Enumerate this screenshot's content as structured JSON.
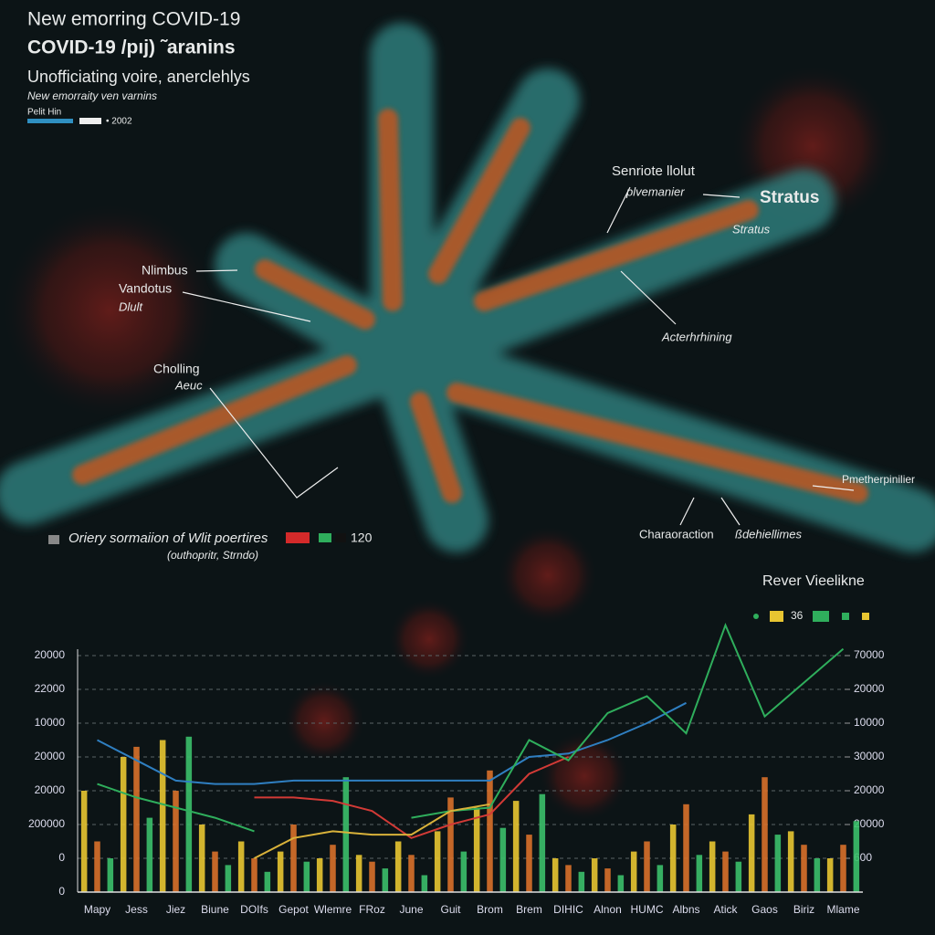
{
  "header": {
    "title": "New emorring COVID-19",
    "title2": "COVID-19  /pıj) ˜aranins",
    "subtitle": "Unofficiating voire, anerclehlys",
    "note": "New emorraity ven varnins",
    "legend_head": "Pelit Hin",
    "legend_item": "• 2002"
  },
  "annotations": {
    "a1": "Senriote llolut",
    "a2": "plvemanier",
    "a3": "Stratus",
    "a4": "Stratus",
    "a5": "Nlimbus",
    "a6": "Vandotus",
    "a7": "Dlult",
    "a8": "Acterhrhining",
    "a9": "Cholling",
    "a10": "Aeuc",
    "a11": "Pmetherpinilier",
    "a12": "Charaoraction",
    "a13": "ßdehiellimes"
  },
  "mid_legend": {
    "text": "Oriery sormaiion of Wlit poertires",
    "value": "120",
    "sub": "(outhopritr, Strndo)"
  },
  "chart_data": {
    "type": "bar",
    "legend_title": "Rever Vieelikne",
    "legend_value": "36",
    "categories": [
      "Mapy",
      "Jess",
      "Jiez",
      "Biune",
      "DOIfs",
      "Gepot",
      "Wlemre",
      "FRoz",
      "June",
      "Guit",
      "Brom",
      "Brem",
      "DIHIC",
      "Alnon",
      "HUMC",
      "Albns",
      "Atick",
      "Gaos",
      "Biriz",
      "Mlame"
    ],
    "series": [
      {
        "color": "#e8c531",
        "values": [
          3.0,
          4.0,
          4.5,
          2.0,
          1.5,
          1.2,
          1.0,
          1.1,
          1.5,
          1.8,
          2.5,
          2.7,
          1.0,
          1.0,
          1.2,
          2.0,
          1.5,
          2.3,
          1.8,
          1.0
        ]
      },
      {
        "color": "#d8702a",
        "values": [
          1.5,
          4.3,
          3.0,
          1.2,
          1.0,
          2.0,
          1.4,
          0.9,
          1.1,
          2.8,
          3.6,
          1.7,
          0.8,
          0.7,
          1.5,
          2.6,
          1.2,
          3.4,
          1.4,
          1.4
        ]
      },
      {
        "color": "#3bbf6a",
        "values": [
          1.0,
          2.2,
          4.6,
          0.8,
          0.6,
          0.9,
          3.4,
          0.7,
          0.5,
          1.2,
          1.9,
          2.9,
          0.6,
          0.5,
          0.8,
          1.1,
          0.9,
          1.7,
          1.0,
          2.1
        ]
      }
    ],
    "lines": [
      {
        "color": "#2f7fc1",
        "values": [
          4.5,
          3.9,
          3.3,
          3.2,
          3.2,
          3.3,
          3.3,
          3.3,
          3.3,
          3.3,
          3.3,
          4.0,
          4.1,
          4.5,
          5.0,
          5.6,
          null,
          null,
          null,
          null
        ]
      },
      {
        "color": "#d23a36",
        "values": [
          null,
          null,
          null,
          null,
          2.8,
          2.8,
          2.7,
          2.4,
          1.6,
          2.0,
          2.3,
          3.5,
          4.0,
          null,
          null,
          null,
          null,
          null,
          null,
          null
        ]
      },
      {
        "color": "#2fae5c",
        "values": [
          3.2,
          2.8,
          2.5,
          2.2,
          1.8,
          null,
          null,
          null,
          2.2,
          2.4,
          2.5,
          4.5,
          3.9,
          5.3,
          5.8,
          4.7,
          7.9,
          5.2,
          6.2,
          7.2
        ]
      },
      {
        "color": "#d9b23a",
        "values": [
          null,
          null,
          null,
          null,
          1.0,
          1.6,
          1.8,
          1.7,
          1.7,
          2.4,
          2.6,
          null,
          null,
          null,
          null,
          null,
          null,
          null,
          null,
          null
        ]
      }
    ],
    "ylim": [
      0,
      8
    ],
    "yticks": [
      0,
      {
        "value": 1,
        "label": "0"
      },
      {
        "value": 2,
        "label": "200000"
      },
      {
        "value": 3,
        "label": "20000"
      },
      {
        "value": 4,
        "label": "20000"
      },
      {
        "value": 5,
        "label": "10000"
      },
      {
        "value": 6,
        "label": "22000"
      },
      {
        "value": 7,
        "label": "20000"
      }
    ],
    "y2lim": [
      0,
      8
    ],
    "y2ticks": [
      {
        "value": 1,
        "label": "600"
      },
      {
        "value": 2,
        "label": "20000"
      },
      {
        "value": 3,
        "label": "20000"
      },
      {
        "value": 4,
        "label": "30000"
      },
      {
        "value": 5,
        "label": "10000"
      },
      {
        "value": 6,
        "label": "20000"
      },
      {
        "value": 7,
        "label": "70000"
      }
    ],
    "grid": true
  }
}
